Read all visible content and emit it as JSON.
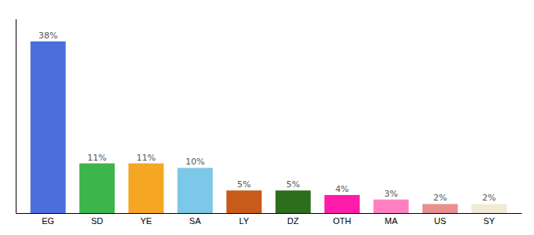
{
  "chart_data": {
    "type": "bar",
    "categories": [
      "EG",
      "SD",
      "YE",
      "SA",
      "LY",
      "DZ",
      "OTH",
      "MA",
      "US",
      "SY"
    ],
    "values": [
      38,
      11,
      11,
      10,
      5,
      5,
      4,
      3,
      2,
      2
    ],
    "value_labels": [
      "38%",
      "11%",
      "11%",
      "10%",
      "5%",
      "5%",
      "4%",
      "3%",
      "2%",
      "2%"
    ],
    "colors": [
      "#4a6fdc",
      "#3cb54a",
      "#f5a623",
      "#7bc8e8",
      "#c85a1a",
      "#2d6e1e",
      "#ff1caa",
      "#ff80c0",
      "#e89090",
      "#f0ead6"
    ],
    "ylim": [
      0,
      43
    ],
    "data_labels": true,
    "tick_labels": "x",
    "grid": false
  }
}
